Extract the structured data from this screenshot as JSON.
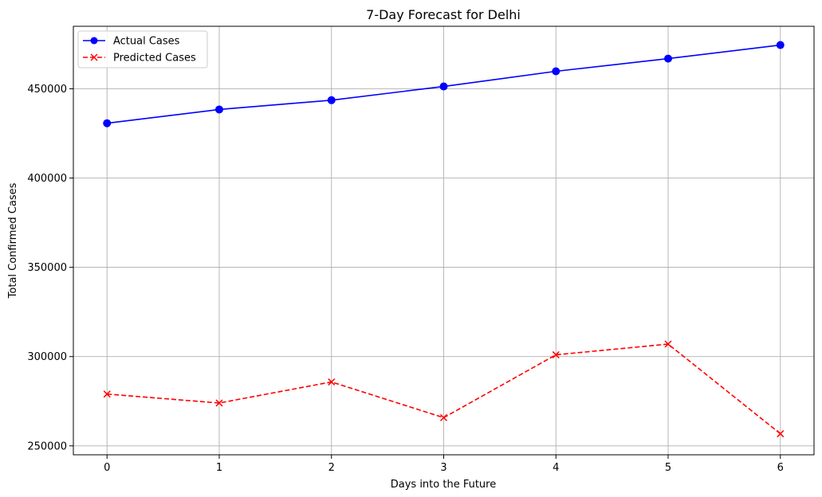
{
  "chart_data": {
    "type": "line",
    "title": "7-Day Forecast for Delhi",
    "xlabel": "Days into the Future",
    "ylabel": "Total Confirmed Cases",
    "x": [
      0,
      1,
      2,
      3,
      4,
      5,
      6
    ],
    "xlim": [
      -0.3,
      6.3
    ],
    "ylim": [
      245000,
      485000
    ],
    "xticks": [
      "0",
      "1",
      "2",
      "3",
      "4",
      "5",
      "6"
    ],
    "yticks": [
      250000,
      300000,
      350000,
      400000,
      450000
    ],
    "ytick_labels": [
      "250000",
      "300000",
      "350000",
      "400000",
      "450000"
    ],
    "grid": true,
    "legend_position": "top-left",
    "series": [
      {
        "name": "Actual Cases",
        "values": [
          430700,
          438400,
          443600,
          451300,
          459800,
          466900,
          474500
        ],
        "color": "#0000ff",
        "line_style": "solid",
        "marker": "circle"
      },
      {
        "name": "Predicted Cases",
        "values": [
          279000,
          274000,
          285800,
          265800,
          301000,
          307000,
          256800
        ],
        "color": "#ff0000",
        "line_style": "dashed",
        "marker": "x"
      }
    ]
  }
}
